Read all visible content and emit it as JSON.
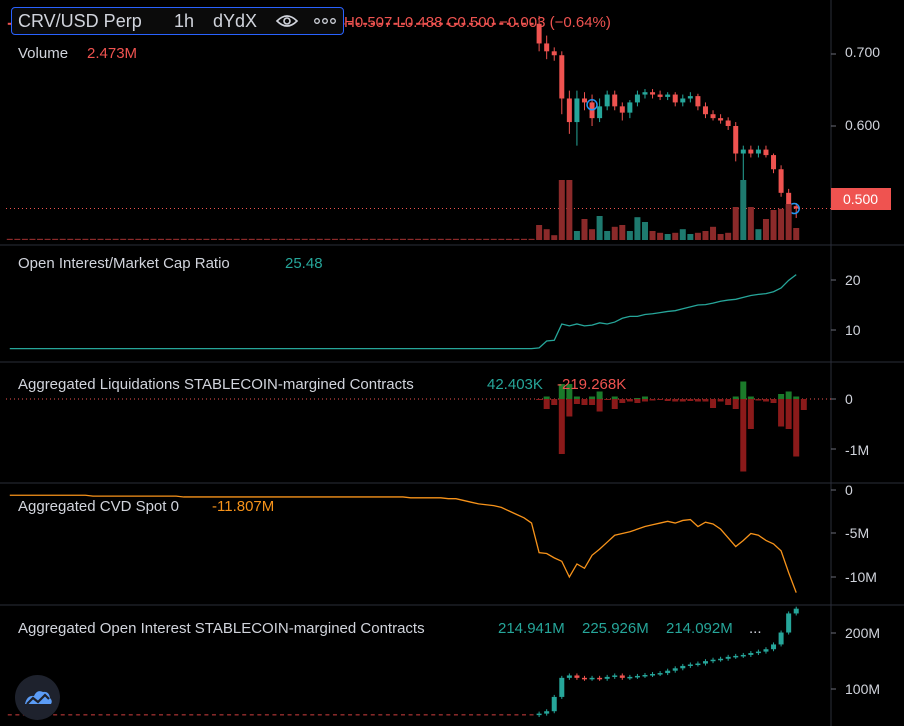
{
  "header": {
    "symbol": "CRV/USD Perp",
    "interval": "1h",
    "exchange": "dYdX",
    "ohlc_text": "H0.507 L0.488 C0.500 −0.003 (−0.64%)",
    "icons": [
      "eye-icon",
      "more-icon"
    ]
  },
  "colors": {
    "up": "#26a69a",
    "down": "#ef5350",
    "liq_up": "#1b7a2a",
    "liq_down": "#8b1a1a",
    "cvd": "#f7931a",
    "oi_ratio": "#26a69a",
    "accent": "#2962ff"
  },
  "panes": {
    "price": {
      "volume_label": "Volume",
      "volume_value": "2.473M",
      "last_price": "0.500",
      "axis_ticks": [
        "0.700",
        "0.600",
        "0.500"
      ]
    },
    "ratio": {
      "title": "Open Interest/Market Cap Ratio",
      "value": "25.48",
      "axis_ticks": [
        "20",
        "10"
      ]
    },
    "liq": {
      "title": "Aggregated Liquidations STABLECOIN-margined Contracts",
      "value_long": "42.403K",
      "value_short": "-219.268K",
      "axis_ticks": [
        "0",
        "-1M"
      ]
    },
    "cvd": {
      "title": "Aggregated CVD Spot 0",
      "value": "-11.807M",
      "axis_ticks": [
        "0",
        "-5M",
        "-10M"
      ]
    },
    "oi": {
      "title": "Aggregated Open Interest STABLECOIN-margined Contracts",
      "values": [
        "214.941M",
        "225.926M",
        "214.092M"
      ],
      "ellipsis": "...",
      "axis_ticks": [
        "200M",
        "100M"
      ]
    }
  },
  "logo_icon": "tradingview-logo-icon",
  "chart_data": [
    {
      "type": "candlestick",
      "name": "CRV/USD Perp 1h",
      "ylim": [
        0.46,
        0.75
      ],
      "flat_prefix_count": 70,
      "flat_price": 0.735,
      "candles": [
        {
          "o": 0.735,
          "h": 0.745,
          "l": 0.7,
          "c": 0.71
        },
        {
          "o": 0.71,
          "h": 0.72,
          "l": 0.69,
          "c": 0.7
        },
        {
          "o": 0.7,
          "h": 0.705,
          "l": 0.688,
          "c": 0.695
        },
        {
          "o": 0.695,
          "h": 0.7,
          "l": 0.62,
          "c": 0.64
        },
        {
          "o": 0.64,
          "h": 0.65,
          "l": 0.595,
          "c": 0.61
        },
        {
          "o": 0.61,
          "h": 0.65,
          "l": 0.58,
          "c": 0.64
        },
        {
          "o": 0.64,
          "h": 0.648,
          "l": 0.625,
          "c": 0.635
        },
        {
          "o": 0.635,
          "h": 0.645,
          "l": 0.605,
          "c": 0.615
        },
        {
          "o": 0.615,
          "h": 0.64,
          "l": 0.61,
          "c": 0.63
        },
        {
          "o": 0.63,
          "h": 0.65,
          "l": 0.625,
          "c": 0.645
        },
        {
          "o": 0.645,
          "h": 0.65,
          "l": 0.625,
          "c": 0.63
        },
        {
          "o": 0.63,
          "h": 0.635,
          "l": 0.612,
          "c": 0.622
        },
        {
          "o": 0.622,
          "h": 0.638,
          "l": 0.615,
          "c": 0.635
        },
        {
          "o": 0.635,
          "h": 0.65,
          "l": 0.63,
          "c": 0.645
        },
        {
          "o": 0.645,
          "h": 0.652,
          "l": 0.64,
          "c": 0.648
        },
        {
          "o": 0.648,
          "h": 0.652,
          "l": 0.64,
          "c": 0.645
        },
        {
          "o": 0.645,
          "h": 0.65,
          "l": 0.638,
          "c": 0.642
        },
        {
          "o": 0.642,
          "h": 0.648,
          "l": 0.638,
          "c": 0.645
        },
        {
          "o": 0.645,
          "h": 0.648,
          "l": 0.63,
          "c": 0.635
        },
        {
          "o": 0.635,
          "h": 0.645,
          "l": 0.63,
          "c": 0.64
        },
        {
          "o": 0.64,
          "h": 0.648,
          "l": 0.635,
          "c": 0.643
        },
        {
          "o": 0.643,
          "h": 0.646,
          "l": 0.625,
          "c": 0.63
        },
        {
          "o": 0.63,
          "h": 0.635,
          "l": 0.615,
          "c": 0.62
        },
        {
          "o": 0.62,
          "h": 0.625,
          "l": 0.612,
          "c": 0.615
        },
        {
          "o": 0.615,
          "h": 0.62,
          "l": 0.608,
          "c": 0.612
        },
        {
          "o": 0.612,
          "h": 0.616,
          "l": 0.6,
          "c": 0.605
        },
        {
          "o": 0.605,
          "h": 0.61,
          "l": 0.56,
          "c": 0.57
        },
        {
          "o": 0.57,
          "h": 0.58,
          "l": 0.53,
          "c": 0.575
        },
        {
          "o": 0.575,
          "h": 0.58,
          "l": 0.565,
          "c": 0.57
        },
        {
          "o": 0.57,
          "h": 0.58,
          "l": 0.565,
          "c": 0.575
        },
        {
          "o": 0.575,
          "h": 0.58,
          "l": 0.565,
          "c": 0.568
        },
        {
          "o": 0.568,
          "h": 0.57,
          "l": 0.545,
          "c": 0.55
        },
        {
          "o": 0.55,
          "h": 0.555,
          "l": 0.515,
          "c": 0.52
        },
        {
          "o": 0.52,
          "h": 0.525,
          "l": 0.495,
          "c": 0.503
        },
        {
          "o": 0.503,
          "h": 0.507,
          "l": 0.488,
          "c": 0.5
        }
      ],
      "volume_ratio": [
        0.02,
        0.02,
        0.02,
        0.02,
        0.02,
        0.02,
        0.02,
        0.02,
        0.02,
        0.02,
        0.02,
        0.02,
        0.02,
        0.02,
        0.02,
        0.02,
        0.02,
        0.02,
        0.02,
        0.02,
        0.02,
        0.02,
        0.02,
        0.02,
        0.02,
        0.02,
        0.02,
        0.02,
        0.02,
        0.02,
        0.02,
        0.02,
        0.02,
        0.02,
        0.02,
        0.02,
        0.02,
        0.02,
        0.02,
        0.02,
        0.02,
        0.02,
        0.02,
        0.02,
        0.02,
        0.02,
        0.02,
        0.02,
        0.02,
        0.02,
        0.02,
        0.02,
        0.02,
        0.02,
        0.02,
        0.02,
        0.02,
        0.02,
        0.02,
        0.02,
        0.02,
        0.02,
        0.02,
        0.02,
        0.02,
        0.02,
        0.02,
        0.02,
        0.02,
        0.02,
        0.25,
        0.18,
        0.08,
        1.0,
        1.0,
        0.15,
        0.35,
        0.18,
        0.4,
        0.15,
        0.22,
        0.25,
        0.15,
        0.38,
        0.3,
        0.15,
        0.12,
        0.1,
        0.12,
        0.18,
        0.1,
        0.12,
        0.15,
        0.22,
        0.1,
        0.12,
        0.55,
        1.0,
        0.55,
        0.18,
        0.35,
        0.5,
        0.52,
        0.6,
        0.2
      ]
    },
    {
      "type": "line",
      "name": "Open Interest/Market Cap Ratio",
      "ylim": [
        3,
        32
      ],
      "values": [
        6,
        6,
        6,
        6,
        6,
        6,
        6,
        6,
        6,
        6,
        6,
        6,
        6,
        6,
        6,
        6,
        6,
        6,
        6,
        6,
        6,
        6,
        6,
        6,
        6,
        6,
        6,
        6,
        6,
        6,
        6,
        6,
        6,
        6,
        6,
        6,
        6,
        6,
        6,
        6,
        6,
        6,
        6,
        6,
        6,
        6,
        6,
        6,
        6,
        6,
        6,
        6,
        6,
        6,
        6,
        6,
        6,
        6,
        6,
        6,
        6,
        6,
        6,
        6,
        6,
        6,
        6,
        6,
        6,
        6,
        6.2,
        8,
        8.2,
        12.5,
        12,
        12.5,
        12,
        12.2,
        12.8,
        12.5,
        13,
        14,
        14.5,
        14.5,
        15,
        15.2,
        15.5,
        15.8,
        16,
        16.5,
        17,
        17.5,
        17.6,
        18,
        18.5,
        18.8,
        19,
        19.5,
        20,
        20.3,
        20.5,
        21,
        22,
        24,
        25.5
      ]
    },
    {
      "type": "bar",
      "name": "Aggregated Liquidations",
      "ylim": [
        -1.5,
        0.4
      ],
      "long": [
        0,
        0,
        0,
        0,
        0,
        0,
        0,
        0,
        0,
        0,
        0,
        0,
        0,
        0,
        0,
        0,
        0,
        0,
        0,
        0,
        0,
        0,
        0,
        0,
        0,
        0,
        0,
        0,
        0,
        0,
        0,
        0,
        0,
        0,
        0,
        0,
        0,
        0,
        0,
        0,
        0,
        0,
        0,
        0,
        0,
        0,
        0,
        0,
        0,
        0,
        0,
        0,
        0,
        0,
        0,
        0,
        0,
        0,
        0,
        0,
        0,
        0,
        0,
        0,
        0,
        0,
        0,
        0,
        0,
        0,
        0,
        0.05,
        0,
        0.3,
        0.3,
        0.05,
        0,
        0.05,
        0.15,
        0,
        0.05,
        0,
        0,
        0.02,
        0.05,
        0,
        0,
        0,
        0,
        0,
        0,
        0,
        0,
        0,
        0,
        0,
        0.05,
        0.35,
        0.05,
        0,
        0,
        0,
        0.1,
        0.15,
        0.05
      ],
      "short": [
        0,
        0,
        0,
        0,
        0,
        0,
        0,
        0,
        0,
        0,
        0,
        0,
        0,
        0,
        0,
        0,
        0,
        0,
        0,
        0,
        0,
        0,
        0,
        0,
        0,
        0,
        0,
        0,
        0,
        0,
        0,
        0,
        0,
        0,
        0,
        0,
        0,
        0,
        0,
        0,
        0,
        0,
        0,
        0,
        0,
        0,
        0,
        0,
        0,
        0,
        0,
        0,
        0,
        0,
        0,
        0,
        0,
        0,
        0,
        0,
        0,
        0,
        0,
        0,
        0,
        0,
        0,
        0,
        0,
        0,
        -0.02,
        -0.2,
        -0.12,
        -1.1,
        -0.35,
        -0.1,
        -0.12,
        -0.12,
        -0.25,
        -0.02,
        -0.2,
        -0.08,
        -0.05,
        -0.08,
        -0.05,
        -0.03,
        -0.02,
        -0.04,
        -0.05,
        -0.05,
        -0.04,
        -0.05,
        -0.05,
        -0.18,
        -0.05,
        -0.12,
        -0.2,
        -1.45,
        -0.6,
        -0.03,
        -0.05,
        -0.08,
        -0.55,
        -0.6,
        -1.15,
        -0.22
      ]
    },
    {
      "type": "line",
      "name": "Aggregated CVD Spot 0",
      "ylim": [
        -12.5,
        0.5
      ],
      "values": [
        -0.6,
        -0.6,
        -0.6,
        -0.6,
        -0.6,
        -0.6,
        -0.6,
        -0.6,
        -0.6,
        -0.6,
        -0.6,
        -0.7,
        -0.7,
        -0.7,
        -0.7,
        -0.7,
        -0.7,
        -0.7,
        -0.7,
        -0.7,
        -0.7,
        -0.7,
        -0.7,
        -0.8,
        -0.8,
        -0.8,
        -0.8,
        -0.8,
        -0.8,
        -0.8,
        -0.8,
        -0.8,
        -0.8,
        -0.8,
        -0.8,
        -0.8,
        -0.8,
        -0.8,
        -0.8,
        -0.8,
        -0.8,
        -0.8,
        -0.8,
        -0.8,
        -0.8,
        -0.8,
        -0.8,
        -0.8,
        -0.8,
        -0.8,
        -0.8,
        -0.8,
        -0.8,
        -0.9,
        -0.9,
        -0.9,
        -0.9,
        -0.9,
        -1.0,
        -1.0,
        -1.2,
        -1.4,
        -1.6,
        -1.7,
        -1.8,
        -2.0,
        -2.4,
        -2.8,
        -3.2,
        -3.8,
        -7.2,
        -7.3,
        -7.8,
        -8.2,
        -10.0,
        -8.5,
        -9.0,
        -7.5,
        -6.8,
        -6.0,
        -5.2,
        -5.0,
        -4.8,
        -4.5,
        -4.2,
        -4.0,
        -3.8,
        -3.6,
        -3.8,
        -3.5,
        -3.4,
        -4.2,
        -3.7,
        -3.9,
        -4.5,
        -5.5,
        -6.5,
        -5.8,
        -5.0,
        -5.2,
        -5.8,
        -6.2,
        -7.0,
        -9.5,
        -11.8
      ]
    },
    {
      "type": "candlestick",
      "name": "Aggregated Open Interest",
      "ylim": [
        0,
        240
      ],
      "flat_prefix_count": 70,
      "flat_value": 2,
      "candles_close": [
        5,
        10,
        40,
        80,
        85,
        80,
        78,
        80,
        78,
        82,
        85,
        80,
        82,
        84,
        86,
        88,
        90,
        95,
        100,
        105,
        108,
        110,
        115,
        118,
        120,
        124,
        126,
        128,
        132,
        135,
        140,
        150,
        175,
        215,
        225
      ]
    }
  ]
}
